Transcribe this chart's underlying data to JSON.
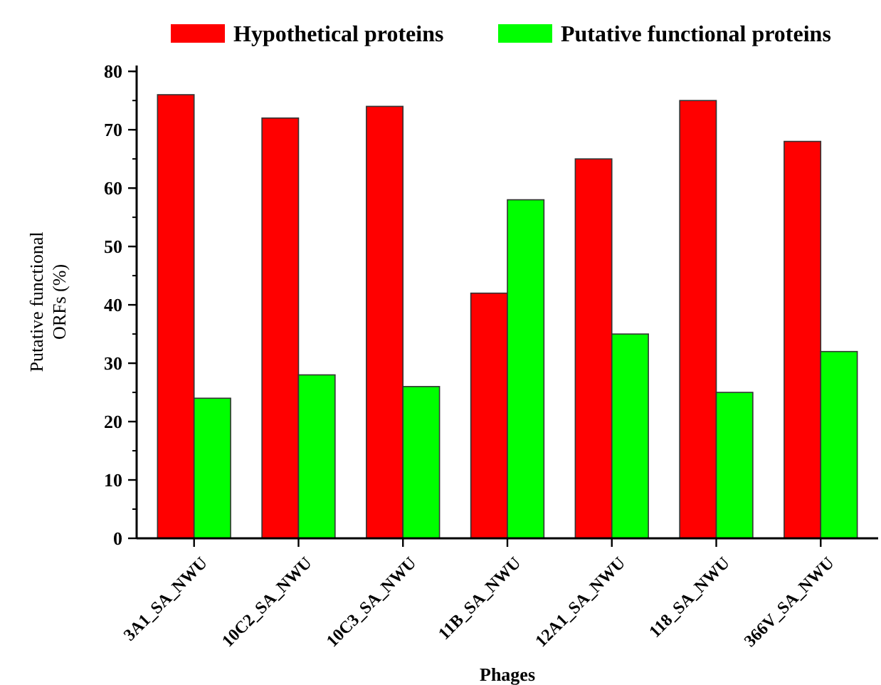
{
  "chart_data": {
    "type": "bar",
    "xlabel": "Phages",
    "ylabel": "Putative functional ORFs (%)",
    "categories": [
      "3A1_SA_NWU",
      "10C2_SA_NWU",
      "10C3_SA_NWU",
      "11B_SA_NWU",
      "12A1_SA_NWU",
      "118_SA_NWU",
      "366V_SA_NWU"
    ],
    "series": [
      {
        "name": "Hypothetical proteins",
        "color": "#ff0000",
        "values": [
          76,
          72,
          74,
          42,
          65,
          75,
          68
        ]
      },
      {
        "name": "Putative functional proteins",
        "color": "#00ff00",
        "values": [
          24,
          28,
          26,
          58,
          35,
          25,
          32
        ]
      }
    ],
    "ylim": [
      0,
      81
    ],
    "yticks": [
      0,
      10,
      20,
      30,
      40,
      50,
      60,
      70,
      80
    ],
    "legend": "top",
    "grid": false
  }
}
